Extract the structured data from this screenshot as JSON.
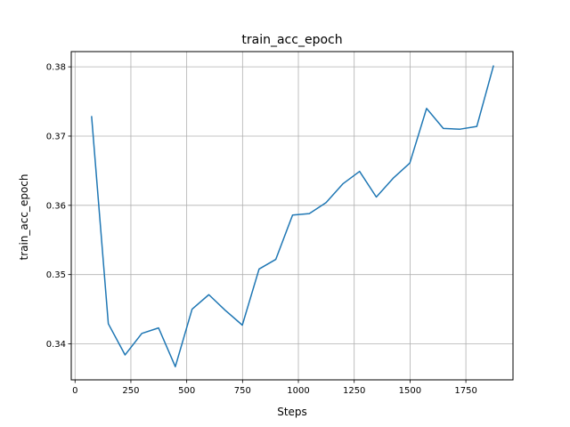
{
  "chart_data": {
    "type": "line",
    "title": "train_acc_epoch",
    "xlabel": "Steps",
    "ylabel": "train_acc_epoch",
    "xlim": [
      -17,
      1961
    ],
    "ylim": [
      0.3348,
      0.3822
    ],
    "xticks": [
      0,
      250,
      500,
      750,
      1000,
      1250,
      1500,
      1750
    ],
    "xtick_labels": [
      "0",
      "250",
      "500",
      "750",
      "1000",
      "1250",
      "1500",
      "1750"
    ],
    "yticks": [
      0.34,
      0.35,
      0.36,
      0.37,
      0.38
    ],
    "ytick_labels": [
      "0.34",
      "0.35",
      "0.36",
      "0.37",
      "0.38"
    ],
    "grid": true,
    "series": [
      {
        "color": "#1f77b4",
        "x": [
          74,
          149,
          224,
          299,
          374,
          449,
          524,
          599,
          674,
          749,
          824,
          899,
          974,
          1049,
          1124,
          1199,
          1274,
          1349,
          1424,
          1499,
          1574,
          1649,
          1724,
          1799,
          1874
        ],
        "y": [
          0.3729,
          0.3429,
          0.3384,
          0.3415,
          0.3423,
          0.3367,
          0.345,
          0.3471,
          0.3448,
          0.3427,
          0.3508,
          0.3522,
          0.3586,
          0.3588,
          0.3604,
          0.3631,
          0.3649,
          0.3612,
          0.3639,
          0.3661,
          0.374,
          0.3711,
          0.371,
          0.3714,
          0.3802
        ]
      }
    ]
  }
}
